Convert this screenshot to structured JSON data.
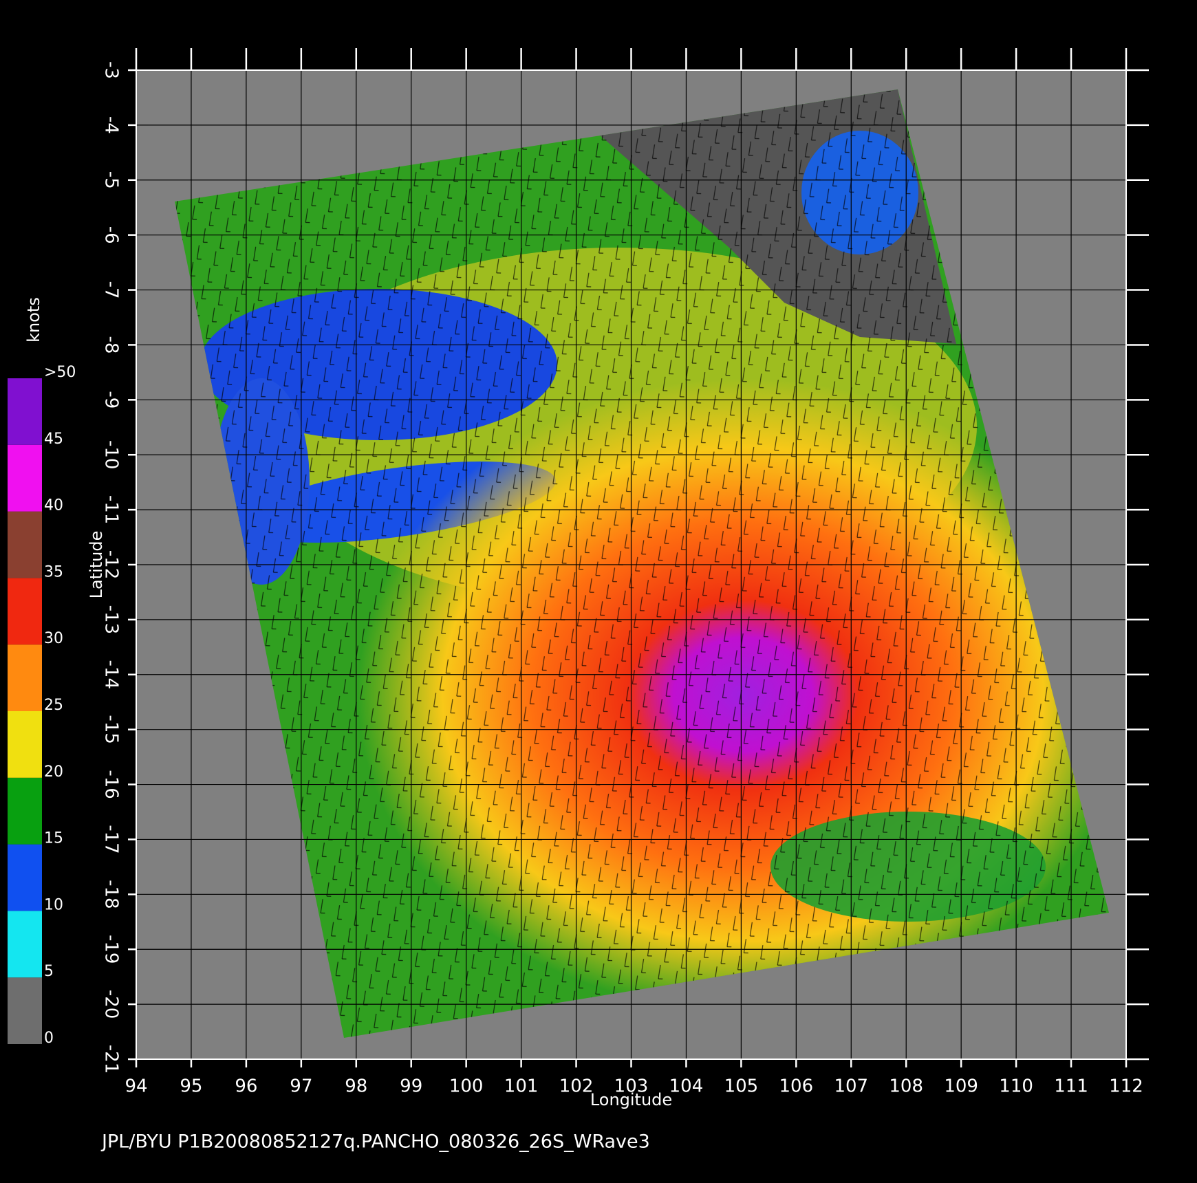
{
  "map": {
    "x_axis": {
      "label": "Longitude",
      "lim": [
        94,
        112
      ],
      "ticks": [
        94,
        95,
        96,
        97,
        98,
        99,
        100,
        101,
        102,
        103,
        104,
        105,
        106,
        107,
        108,
        109,
        110,
        111,
        112
      ]
    },
    "y_axis": {
      "label": "Latitude",
      "lim": [
        -21,
        -3
      ],
      "ticks": [
        -3,
        -4,
        -5,
        -6,
        -7,
        -8,
        -9,
        -10,
        -11,
        -12,
        -13,
        -14,
        -15,
        -16,
        -17,
        -18,
        -19,
        -20,
        -21
      ]
    },
    "colorbar": {
      "label": "knots",
      "ticks": [
        0,
        5,
        10,
        15,
        20,
        25,
        30,
        35,
        40,
        45,
        {
          "value": 50,
          "label": ">50"
        }
      ],
      "colors": [
        "#6e6e6e",
        "#14e6f0",
        "#1050f0",
        "#08a010",
        "#f0e010",
        "#ff8a10",
        "#f02810",
        "#8a4030",
        "#f010f0",
        "#8010d0"
      ]
    },
    "footer": "JPL/BYU  P1B20080852127q.PANCHO_080326_26S_WRave3"
  }
}
